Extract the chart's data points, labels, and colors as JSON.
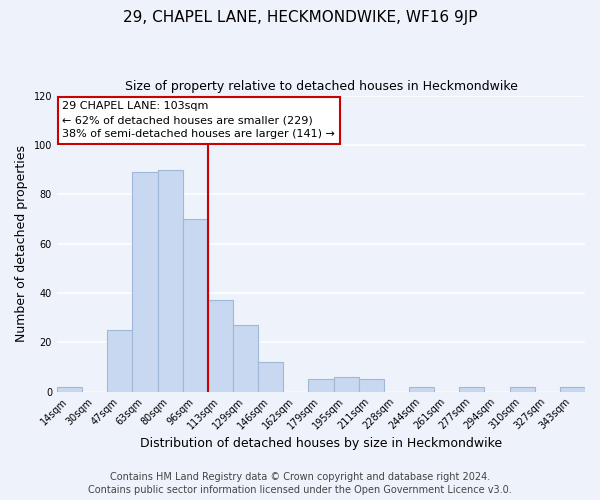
{
  "title": "29, CHAPEL LANE, HECKMONDWIKE, WF16 9JP",
  "subtitle": "Size of property relative to detached houses in Heckmondwike",
  "xlabel": "Distribution of detached houses by size in Heckmondwike",
  "ylabel": "Number of detached properties",
  "categories": [
    "14sqm",
    "30sqm",
    "47sqm",
    "63sqm",
    "80sqm",
    "96sqm",
    "113sqm",
    "129sqm",
    "146sqm",
    "162sqm",
    "179sqm",
    "195sqm",
    "211sqm",
    "228sqm",
    "244sqm",
    "261sqm",
    "277sqm",
    "294sqm",
    "310sqm",
    "327sqm",
    "343sqm"
  ],
  "values": [
    2,
    0,
    25,
    89,
    90,
    70,
    37,
    27,
    12,
    0,
    5,
    6,
    5,
    0,
    2,
    0,
    2,
    0,
    2,
    0,
    2
  ],
  "bar_color": "#c8d8f0",
  "bar_edge_color": "#a0b8d8",
  "vline_after_index": 6,
  "vline_color": "#cc0000",
  "annotation_title": "29 CHAPEL LANE: 103sqm",
  "annotation_line1": "← 62% of detached houses are smaller (229)",
  "annotation_line2": "38% of semi-detached houses are larger (141) →",
  "annotation_box_color": "#ffffff",
  "annotation_box_edge": "#cc0000",
  "ylim": [
    0,
    120
  ],
  "footer1": "Contains HM Land Registry data © Crown copyright and database right 2024.",
  "footer2": "Contains public sector information licensed under the Open Government Licence v3.0.",
  "background_color": "#eef2fa",
  "grid_color": "#ffffff",
  "title_fontsize": 11,
  "subtitle_fontsize": 9,
  "axis_label_fontsize": 9,
  "tick_fontsize": 7,
  "annotation_fontsize": 8,
  "footer_fontsize": 7
}
